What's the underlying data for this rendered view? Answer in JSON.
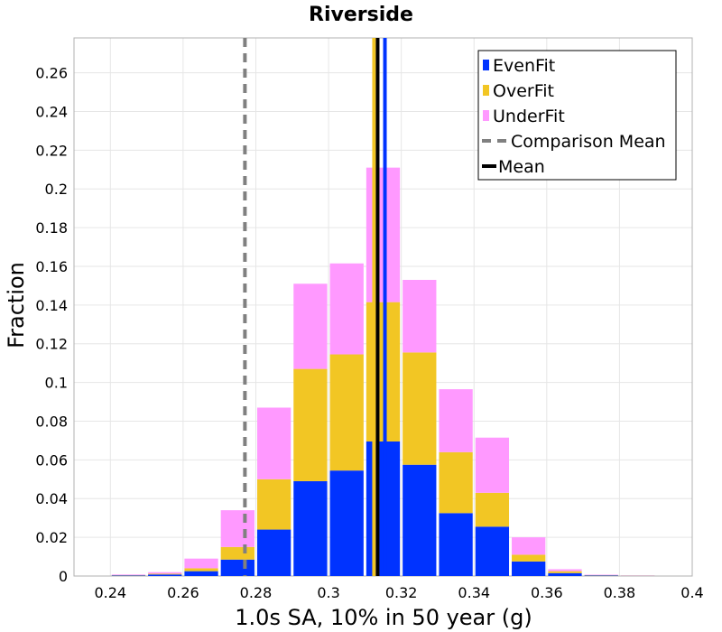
{
  "chart_data": {
    "type": "bar",
    "stacked": true,
    "title": "Riverside",
    "xlabel": "1.0s SA, 10% in 50 year (g)",
    "ylabel": "Fraction",
    "xlim": [
      0.23,
      0.4
    ],
    "ylim": [
      0,
      0.278
    ],
    "x_ticks": [
      "0.24",
      "0.26",
      "0.28",
      "0.3",
      "0.32",
      "0.34",
      "0.36",
      "0.38",
      "0.4"
    ],
    "y_ticks": [
      "0",
      "0.02",
      "0.04",
      "0.06",
      "0.08",
      "0.1",
      "0.12",
      "0.14",
      "0.16",
      "0.18",
      "0.2",
      "0.22",
      "0.24",
      "0.26"
    ],
    "bin_width": 0.01,
    "bin_centers": [
      0.245,
      0.255,
      0.265,
      0.275,
      0.285,
      0.295,
      0.305,
      0.315,
      0.325,
      0.335,
      0.345,
      0.355,
      0.365,
      0.375,
      0.385
    ],
    "series": [
      {
        "name": "EvenFit",
        "color": "#0033ff",
        "values": [
          0.0003,
          0.0008,
          0.0025,
          0.0085,
          0.024,
          0.049,
          0.0545,
          0.0695,
          0.0575,
          0.0325,
          0.0255,
          0.0075,
          0.0015,
          0.0003,
          0.0001
        ]
      },
      {
        "name": "OverFit",
        "color": "#f2c624",
        "values": [
          0.0002,
          0.0004,
          0.0015,
          0.0065,
          0.026,
          0.058,
          0.06,
          0.072,
          0.058,
          0.0315,
          0.0175,
          0.0035,
          0.001,
          0.0002,
          0.0001
        ]
      },
      {
        "name": "UnderFit",
        "color": "#ff99ff",
        "values": [
          0.0003,
          0.0008,
          0.005,
          0.019,
          0.037,
          0.044,
          0.047,
          0.0695,
          0.0375,
          0.0325,
          0.0285,
          0.009,
          0.001,
          0.0002,
          0.0001
        ]
      }
    ],
    "lines": [
      {
        "name": "Comparison Mean",
        "x": 0.277,
        "color": "#808080",
        "style": "dashed"
      },
      {
        "name": "Mean",
        "x": 0.3135,
        "color": "#000000",
        "style": "solid"
      },
      {
        "name": "EvenFit Mean",
        "x": 0.3155,
        "color": "#0033ff",
        "style": "solid"
      },
      {
        "name": "OverFit Mean",
        "x": 0.3125,
        "color": "#f2c624",
        "style": "solid"
      },
      {
        "name": "UnderFit Mean",
        "x": 0.3135,
        "color": "#ff99ff",
        "style": "solid"
      }
    ],
    "legend": {
      "position": "top-right",
      "entries": [
        {
          "label": "EvenFit",
          "color": "#0033ff",
          "kind": "box"
        },
        {
          "label": "OverFit",
          "color": "#f2c624",
          "kind": "box"
        },
        {
          "label": "UnderFit",
          "color": "#ff99ff",
          "kind": "box"
        },
        {
          "label": "Comparison Mean",
          "color": "#808080",
          "kind": "dash"
        },
        {
          "label": "Mean",
          "color": "#000000",
          "kind": "line"
        }
      ]
    },
    "grid": true
  }
}
